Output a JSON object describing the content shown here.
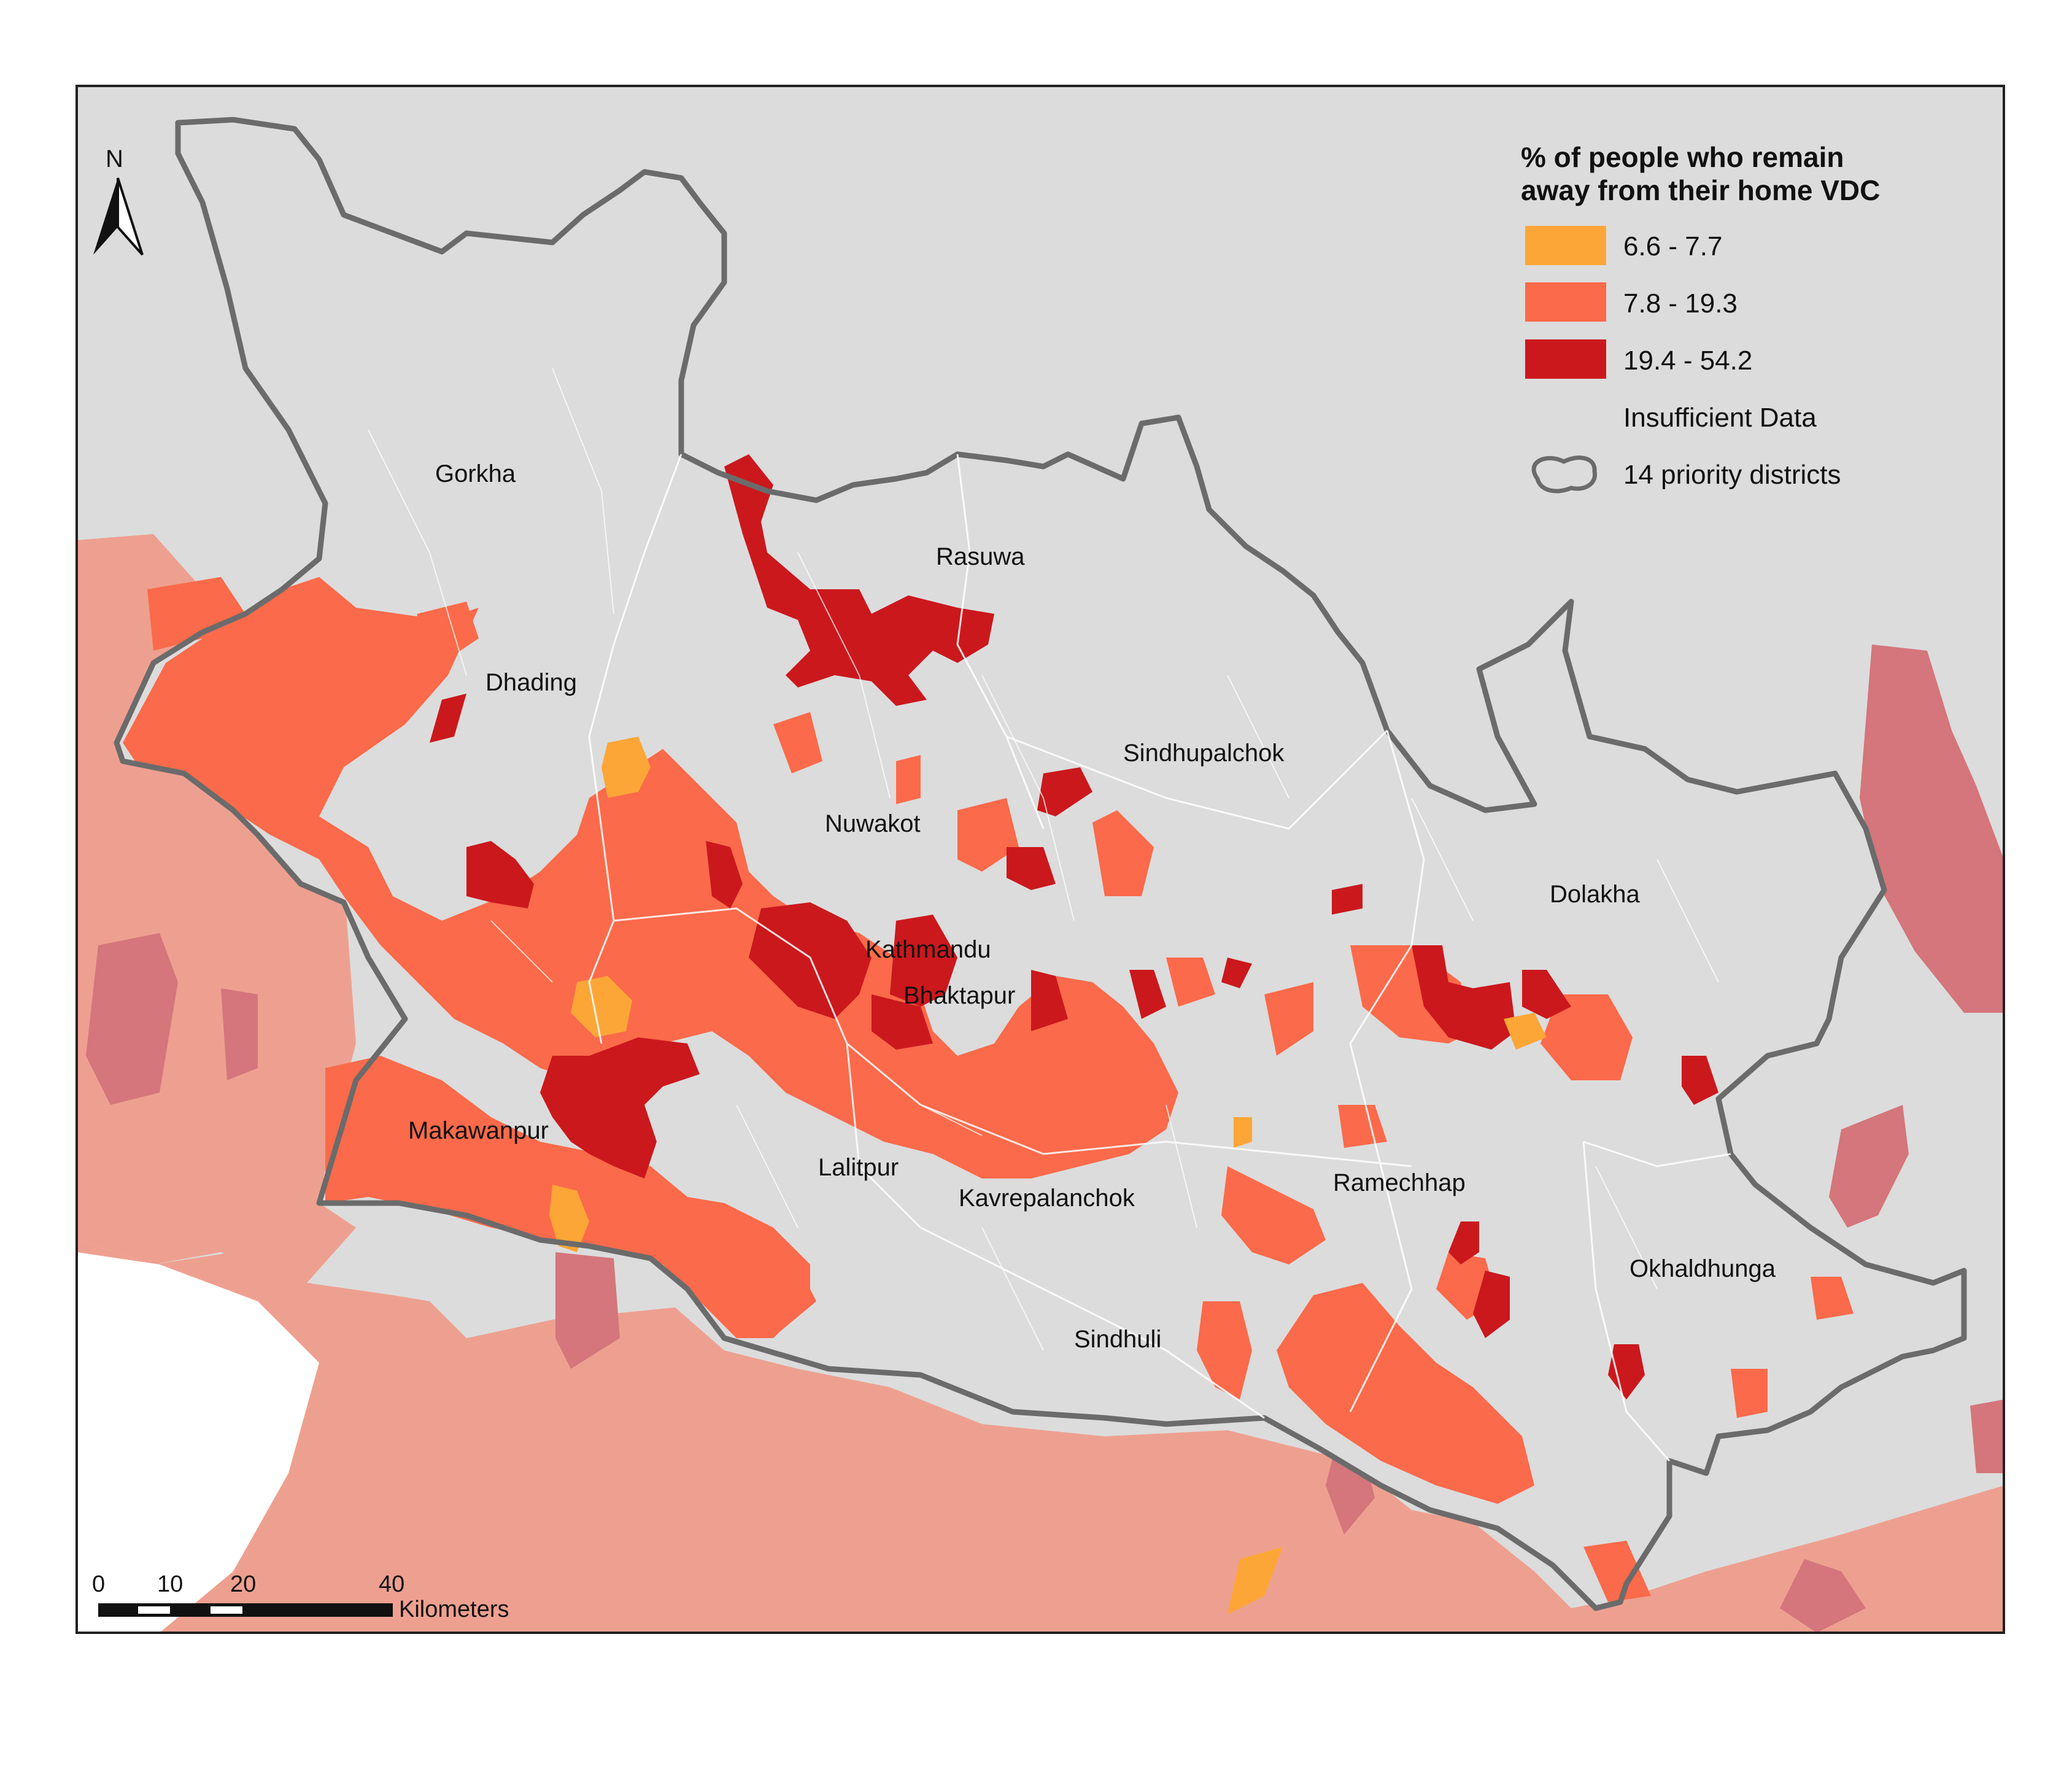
{
  "colors": {
    "insufficient": "#dcdcdc",
    "class_low": "#fca637",
    "class_mid": "#fb6a4a",
    "class_high": "#cb181d",
    "outside_light": "#eea090",
    "outside_dark": "#d4767c",
    "boundary": "#6b6b6b",
    "lake": "#ffffff"
  },
  "north_arrow": {
    "label": "N",
    "icon": "north-arrow-icon"
  },
  "legend": {
    "title_line1": "% of people who remain",
    "title_line2": "away from their home VDC",
    "items": [
      {
        "label": "6.6 - 7.7",
        "color": "#fca637"
      },
      {
        "label": "7.8 - 19.3",
        "color": "#fb6a4a"
      },
      {
        "label": "19.4 - 54.2",
        "color": "#cb181d"
      },
      {
        "label": "Insufficient Data",
        "color": "#dcdcdc"
      },
      {
        "label": "14 priority districts",
        "icon": "district-outline-icon"
      }
    ]
  },
  "districts": [
    "Gorkha",
    "Rasuwa",
    "Dhading",
    "Sindhupalchok",
    "Nuwakot",
    "Dolakha",
    "Kathmandu",
    "Bhaktapur",
    "Makawanpur",
    "Lalitpur",
    "Ramechhap",
    "Kavrepalanchok",
    "Okhaldhunga",
    "Sindhuli"
  ],
  "scale_bar": {
    "ticks": [
      "0",
      "10",
      "20",
      "40"
    ],
    "unit": "Kilometers"
  }
}
